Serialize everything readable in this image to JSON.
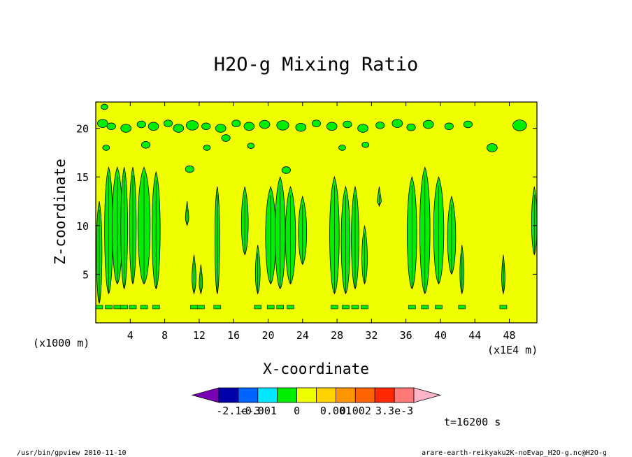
{
  "chart_data": {
    "type": "heatmap",
    "title": "H2O-g Mixing Ratio",
    "xlabel": "X-coordinate",
    "ylabel": "Z-coordinate",
    "x_unit_left": "(x1000 m)",
    "x_unit_right": "(x1E4 m)",
    "time_label": "t=16200 s",
    "x_ticks": [
      "4",
      "8",
      "12",
      "16",
      "20",
      "24",
      "28",
      "32",
      "36",
      "40",
      "44",
      "48"
    ],
    "x_tick_values": [
      4,
      8,
      12,
      16,
      20,
      24,
      28,
      32,
      36,
      40,
      44,
      48
    ],
    "y_ticks": [
      "5",
      "10",
      "15",
      "20"
    ],
    "y_tick_values": [
      5,
      10,
      15,
      20
    ],
    "xlim": [
      0,
      51.2
    ],
    "ylim": [
      0,
      22.7
    ],
    "background_color": "#f0ff00",
    "feature_color": "#00ee00",
    "colorbar": {
      "colors": [
        "#7800b4",
        "#0000aa",
        "#0064ff",
        "#00e6ff",
        "#00ee00",
        "#f0ff00",
        "#ffd200",
        "#ff9600",
        "#ff6400",
        "#ff2800",
        "#ff7878",
        "#ffb4c8"
      ],
      "tick_labels": [
        "-2.1e-3",
        "-0.001",
        "0",
        "0.001",
        "0.002",
        "3.3e-3"
      ]
    },
    "features": [
      {
        "x": 1.5,
        "zb": 3,
        "zt": 16,
        "w": 1.2
      },
      {
        "x": 2.5,
        "zb": 4,
        "zt": 16,
        "w": 1.5
      },
      {
        "x": 3.3,
        "zb": 3.5,
        "zt": 16,
        "w": 1.0
      },
      {
        "x": 4.3,
        "zb": 4,
        "zt": 16,
        "w": 1.0
      },
      {
        "x": 5.6,
        "zb": 4,
        "zt": 16,
        "w": 1.8
      },
      {
        "x": 7.0,
        "zb": 3.5,
        "zt": 15.5,
        "w": 1.2
      },
      {
        "x": 0.4,
        "zb": 2,
        "zt": 12.5,
        "w": 0.8
      },
      {
        "x": 10.6,
        "zb": 10,
        "zt": 12.5,
        "w": 0.5
      },
      {
        "x": 11.4,
        "zb": 3,
        "zt": 7,
        "w": 0.6
      },
      {
        "x": 12.2,
        "zb": 3,
        "zt": 6,
        "w": 0.5
      },
      {
        "x": 14.1,
        "zb": 3,
        "zt": 14,
        "w": 0.7
      },
      {
        "x": 17.3,
        "zb": 7,
        "zt": 14,
        "w": 1.0
      },
      {
        "x": 18.8,
        "zb": 3,
        "zt": 8,
        "w": 0.7
      },
      {
        "x": 20.3,
        "zb": 4,
        "zt": 14,
        "w": 1.5
      },
      {
        "x": 21.4,
        "zb": 3.5,
        "zt": 15,
        "w": 1.5
      },
      {
        "x": 22.6,
        "zb": 4,
        "zt": 14,
        "w": 1.5
      },
      {
        "x": 24.0,
        "zb": 6,
        "zt": 13,
        "w": 1.2
      },
      {
        "x": 27.7,
        "zb": 3,
        "zt": 15,
        "w": 1.4
      },
      {
        "x": 29.0,
        "zb": 3,
        "zt": 14,
        "w": 1.3
      },
      {
        "x": 30.1,
        "zb": 3.5,
        "zt": 14,
        "w": 1.1
      },
      {
        "x": 31.2,
        "zb": 4,
        "zt": 10,
        "w": 0.8
      },
      {
        "x": 32.9,
        "zb": 12,
        "zt": 14,
        "w": 0.6
      },
      {
        "x": 36.7,
        "zb": 3.5,
        "zt": 15,
        "w": 1.4
      },
      {
        "x": 38.2,
        "zb": 3,
        "zt": 16,
        "w": 1.5
      },
      {
        "x": 39.8,
        "zb": 4,
        "zt": 15,
        "w": 1.5
      },
      {
        "x": 41.3,
        "zb": 5,
        "zt": 13,
        "w": 1.2
      },
      {
        "x": 42.5,
        "zb": 3,
        "zt": 8,
        "w": 0.6
      },
      {
        "x": 47.3,
        "zb": 3,
        "zt": 7,
        "w": 0.5
      },
      {
        "x": 50.9,
        "zb": 7,
        "zt": 14,
        "w": 0.8
      }
    ],
    "blobs": [
      {
        "x": 0.8,
        "z": 20.5,
        "r": 0.6
      },
      {
        "x": 1.8,
        "z": 20.2,
        "r": 0.5
      },
      {
        "x": 3.5,
        "z": 20.0,
        "r": 0.6
      },
      {
        "x": 5.3,
        "z": 20.4,
        "r": 0.5
      },
      {
        "x": 6.7,
        "z": 20.2,
        "r": 0.6
      },
      {
        "x": 8.4,
        "z": 20.5,
        "r": 0.5
      },
      {
        "x": 9.6,
        "z": 20.0,
        "r": 0.6
      },
      {
        "x": 11.2,
        "z": 20.3,
        "r": 0.7
      },
      {
        "x": 12.8,
        "z": 20.2,
        "r": 0.5
      },
      {
        "x": 14.5,
        "z": 20.0,
        "r": 0.6
      },
      {
        "x": 16.3,
        "z": 20.5,
        "r": 0.5
      },
      {
        "x": 17.8,
        "z": 20.2,
        "r": 0.6
      },
      {
        "x": 19.6,
        "z": 20.4,
        "r": 0.6
      },
      {
        "x": 21.7,
        "z": 20.3,
        "r": 0.7
      },
      {
        "x": 23.8,
        "z": 20.1,
        "r": 0.6
      },
      {
        "x": 25.6,
        "z": 20.5,
        "r": 0.5
      },
      {
        "x": 27.4,
        "z": 20.2,
        "r": 0.6
      },
      {
        "x": 29.2,
        "z": 20.4,
        "r": 0.5
      },
      {
        "x": 31.0,
        "z": 20.0,
        "r": 0.6
      },
      {
        "x": 33.0,
        "z": 20.3,
        "r": 0.5
      },
      {
        "x": 35.0,
        "z": 20.5,
        "r": 0.6
      },
      {
        "x": 36.6,
        "z": 20.1,
        "r": 0.5
      },
      {
        "x": 38.6,
        "z": 20.4,
        "r": 0.6
      },
      {
        "x": 41.0,
        "z": 20.2,
        "r": 0.5
      },
      {
        "x": 43.2,
        "z": 20.4,
        "r": 0.5
      },
      {
        "x": 49.2,
        "z": 20.3,
        "r": 0.8
      },
      {
        "x": 1.0,
        "z": 22.2,
        "r": 0.4
      },
      {
        "x": 1.2,
        "z": 18.0,
        "r": 0.4
      },
      {
        "x": 5.8,
        "z": 18.3,
        "r": 0.5
      },
      {
        "x": 12.9,
        "z": 18.0,
        "r": 0.4
      },
      {
        "x": 15.1,
        "z": 19.0,
        "r": 0.5
      },
      {
        "x": 18.0,
        "z": 18.2,
        "r": 0.4
      },
      {
        "x": 28.6,
        "z": 18.0,
        "r": 0.4
      },
      {
        "x": 31.3,
        "z": 18.3,
        "r": 0.4
      },
      {
        "x": 46.0,
        "z": 18.0,
        "r": 0.6
      },
      {
        "x": 10.9,
        "z": 15.8,
        "r": 0.5
      },
      {
        "x": 22.1,
        "z": 15.7,
        "r": 0.5
      }
    ]
  },
  "footer": {
    "left": "/usr/bin/gpview   2010-11-10",
    "right": "arare-earth-reikyaku2K-noEvap_H2O-g.nc@H2O-g"
  }
}
